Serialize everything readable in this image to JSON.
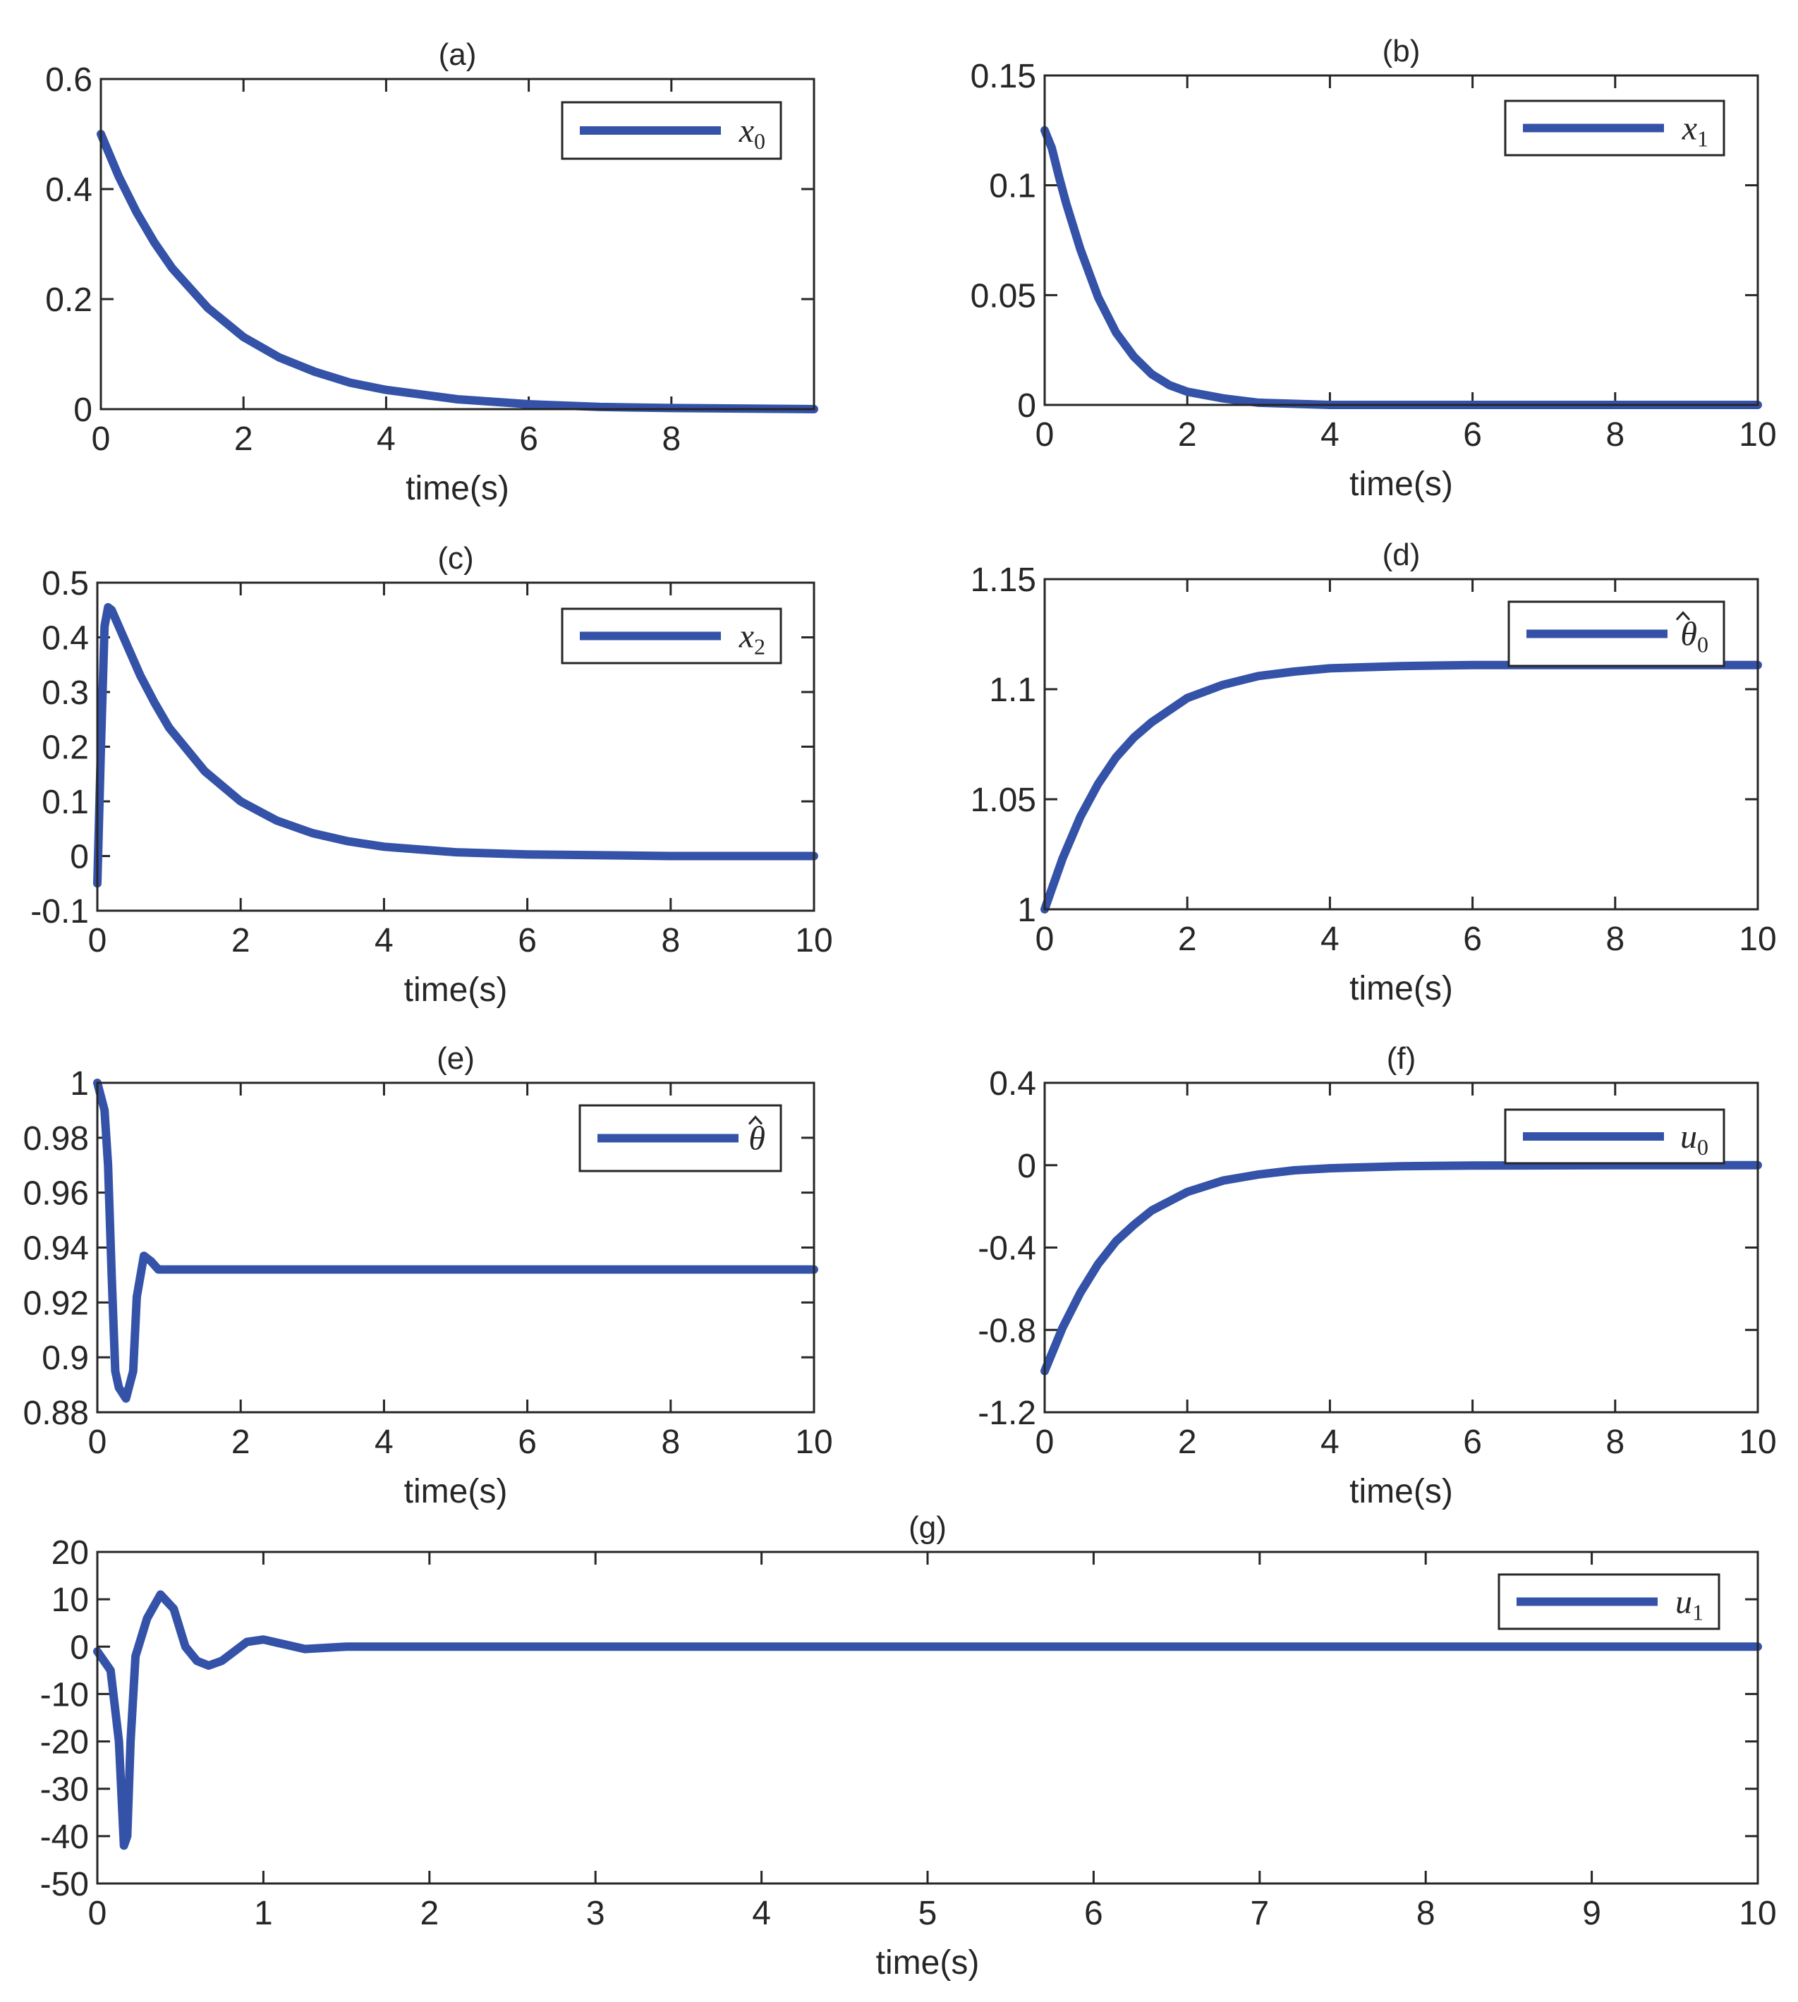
{
  "colors": {
    "line": "#3452a7",
    "axis": "#262626"
  },
  "chart_data": [
    {
      "type": "line",
      "title": "(a)",
      "xlabel": "time(s)",
      "ylabel": "",
      "xlim": [
        0,
        10
      ],
      "ylim": [
        0,
        0.6
      ],
      "xticks": [
        0,
        2,
        4,
        6,
        8
      ],
      "xtick_labels": [
        "0",
        "2",
        "4",
        "6",
        "8"
      ],
      "yticks": [
        0,
        0.2,
        0.4,
        0.6
      ],
      "ytick_labels": [
        "0",
        "0.2",
        "0.4",
        "0.6"
      ],
      "legend": {
        "symbol": "x",
        "subscript": "0",
        "position": "top-right"
      },
      "series": [
        {
          "name": "x0",
          "x": [
            0,
            0.25,
            0.5,
            0.75,
            1,
            1.5,
            2,
            2.5,
            3,
            3.5,
            4,
            5,
            6,
            7,
            8,
            10
          ],
          "y": [
            0.5,
            0.423,
            0.358,
            0.303,
            0.256,
            0.184,
            0.131,
            0.094,
            0.068,
            0.048,
            0.035,
            0.018,
            0.009,
            0.004,
            0.002,
            0.0
          ]
        }
      ]
    },
    {
      "type": "line",
      "title": "(b)",
      "xlabel": "time(s)",
      "ylabel": "",
      "xlim": [
        0,
        10
      ],
      "ylim": [
        0,
        0.15
      ],
      "xticks": [
        0,
        2,
        4,
        6,
        8,
        10
      ],
      "xtick_labels": [
        "0",
        "2",
        "4",
        "6",
        "8",
        "10"
      ],
      "yticks": [
        0,
        0.05,
        0.1,
        0.15
      ],
      "ytick_labels": [
        "0",
        "0.05",
        "0.1",
        "0.15"
      ],
      "legend": {
        "symbol": "x",
        "subscript": "1",
        "position": "top-right"
      },
      "series": [
        {
          "name": "x1",
          "x": [
            0,
            0.1,
            0.2,
            0.3,
            0.5,
            0.75,
            1,
            1.25,
            1.5,
            1.75,
            2,
            2.5,
            3,
            4,
            6,
            10
          ],
          "y": [
            0.125,
            0.117,
            0.104,
            0.092,
            0.071,
            0.049,
            0.033,
            0.022,
            0.014,
            0.009,
            0.006,
            0.003,
            0.001,
            0.0,
            0.0,
            0.0
          ]
        }
      ]
    },
    {
      "type": "line",
      "title": "(c)",
      "xlabel": "time(s)",
      "ylabel": "",
      "xlim": [
        0,
        10
      ],
      "ylim": [
        -0.1,
        0.5
      ],
      "xticks": [
        0,
        2,
        4,
        6,
        8,
        10
      ],
      "xtick_labels": [
        "0",
        "2",
        "4",
        "6",
        "8",
        "10"
      ],
      "yticks": [
        -0.1,
        0,
        0.1,
        0.2,
        0.3,
        0.4,
        0.5
      ],
      "ytick_labels": [
        "-0.1",
        "0",
        "0.1",
        "0.2",
        "0.3",
        "0.4",
        "0.5"
      ],
      "legend": {
        "symbol": "x",
        "subscript": "2",
        "position": "top-right"
      },
      "series": [
        {
          "name": "x2",
          "x": [
            0,
            0.05,
            0.1,
            0.15,
            0.2,
            0.4,
            0.6,
            0.8,
            1,
            1.5,
            2,
            2.5,
            3,
            3.5,
            4,
            5,
            6,
            8,
            10
          ],
          "y": [
            -0.05,
            0.2,
            0.42,
            0.455,
            0.45,
            0.39,
            0.33,
            0.28,
            0.235,
            0.155,
            0.1,
            0.065,
            0.042,
            0.027,
            0.017,
            0.007,
            0.003,
            0.0,
            0.0
          ]
        }
      ]
    },
    {
      "type": "line",
      "title": "(d)",
      "xlabel": "time(s)",
      "ylabel": "",
      "xlim": [
        0,
        10
      ],
      "ylim": [
        1,
        1.15
      ],
      "xticks": [
        0,
        2,
        4,
        6,
        8,
        10
      ],
      "xtick_labels": [
        "0",
        "2",
        "4",
        "6",
        "8",
        "10"
      ],
      "yticks": [
        1,
        1.05,
        1.1,
        1.15
      ],
      "ytick_labels": [
        "1",
        "1.05",
        "1.1",
        "1.15"
      ],
      "legend": {
        "symbol": "θ",
        "hat": true,
        "subscript": "0",
        "position": "top-right"
      },
      "series": [
        {
          "name": "theta0_hat",
          "x": [
            0,
            0.25,
            0.5,
            0.75,
            1,
            1.25,
            1.5,
            2,
            2.5,
            3,
            3.5,
            4,
            5,
            6,
            8,
            10
          ],
          "y": [
            1.0,
            1.023,
            1.042,
            1.057,
            1.069,
            1.078,
            1.085,
            1.096,
            1.102,
            1.106,
            1.108,
            1.1095,
            1.1105,
            1.111,
            1.111,
            1.111
          ]
        }
      ]
    },
    {
      "type": "line",
      "title": "(e)",
      "xlabel": "time(s)",
      "ylabel": "",
      "xlim": [
        0,
        10
      ],
      "ylim": [
        0.88,
        1
      ],
      "xticks": [
        0,
        2,
        4,
        6,
        8,
        10
      ],
      "xtick_labels": [
        "0",
        "2",
        "4",
        "6",
        "8",
        "10"
      ],
      "yticks": [
        0.88,
        0.9,
        0.92,
        0.94,
        0.96,
        0.98,
        1
      ],
      "ytick_labels": [
        "0.88",
        "0.9",
        "0.92",
        "0.94",
        "0.96",
        "0.98",
        "1"
      ],
      "legend": {
        "symbol": "θ",
        "hat": true,
        "subscript": "",
        "position": "top-right"
      },
      "series": [
        {
          "name": "theta_hat",
          "x": [
            0,
            0.1,
            0.15,
            0.2,
            0.25,
            0.3,
            0.4,
            0.5,
            0.55,
            0.65,
            0.75,
            0.85,
            1,
            1.5,
            10
          ],
          "y": [
            1.0,
            0.99,
            0.97,
            0.93,
            0.895,
            0.889,
            0.885,
            0.895,
            0.922,
            0.937,
            0.935,
            0.932,
            0.932,
            0.932,
            0.932
          ]
        }
      ]
    },
    {
      "type": "line",
      "title": "(f)",
      "xlabel": "time(s)",
      "ylabel": "",
      "xlim": [
        0,
        10
      ],
      "ylim": [
        -1.2,
        0.4
      ],
      "xticks": [
        0,
        2,
        4,
        6,
        8,
        10
      ],
      "xtick_labels": [
        "0",
        "2",
        "4",
        "6",
        "8",
        "10"
      ],
      "yticks": [
        -1.2,
        -0.8,
        -0.4,
        0,
        0.4
      ],
      "ytick_labels": [
        "-1.2",
        "-0.8",
        "-0.4",
        "0",
        "0.4"
      ],
      "legend": {
        "symbol": "u",
        "subscript": "0",
        "position": "top-right"
      },
      "series": [
        {
          "name": "u0",
          "x": [
            0,
            0.25,
            0.5,
            0.75,
            1,
            1.25,
            1.5,
            2,
            2.5,
            3,
            3.5,
            4,
            5,
            6,
            8,
            10
          ],
          "y": [
            -1.0,
            -0.79,
            -0.62,
            -0.48,
            -0.37,
            -0.29,
            -0.22,
            -0.13,
            -0.075,
            -0.045,
            -0.025,
            -0.015,
            -0.005,
            -0.002,
            0.0,
            0.0
          ]
        }
      ]
    },
    {
      "type": "line",
      "title": "(g)",
      "xlabel": "time(s)",
      "ylabel": "",
      "xlim": [
        0,
        10
      ],
      "ylim": [
        -50,
        20
      ],
      "xticks": [
        0,
        1,
        2,
        3,
        4,
        5,
        6,
        7,
        8,
        9,
        10
      ],
      "xtick_labels": [
        "0",
        "1",
        "2",
        "3",
        "4",
        "5",
        "6",
        "7",
        "8",
        "9",
        "10"
      ],
      "yticks": [
        -50,
        -40,
        -30,
        -20,
        -10,
        0,
        10,
        20
      ],
      "ytick_labels": [
        "-50",
        "-40",
        "-30",
        "-20",
        "-10",
        "0",
        "10",
        "20"
      ],
      "legend": {
        "symbol": "u",
        "subscript": "1",
        "position": "top-right"
      },
      "series": [
        {
          "name": "u1",
          "x": [
            0,
            0.08,
            0.13,
            0.16,
            0.18,
            0.2,
            0.23,
            0.3,
            0.38,
            0.46,
            0.53,
            0.6,
            0.67,
            0.75,
            0.9,
            1.0,
            1.25,
            1.5,
            2,
            10
          ],
          "y": [
            -1,
            -5,
            -20,
            -42,
            -40,
            -20,
            -2,
            6,
            11,
            8,
            0,
            -3,
            -4,
            -3,
            1,
            1.5,
            -0.5,
            0,
            0,
            0
          ]
        }
      ]
    }
  ]
}
